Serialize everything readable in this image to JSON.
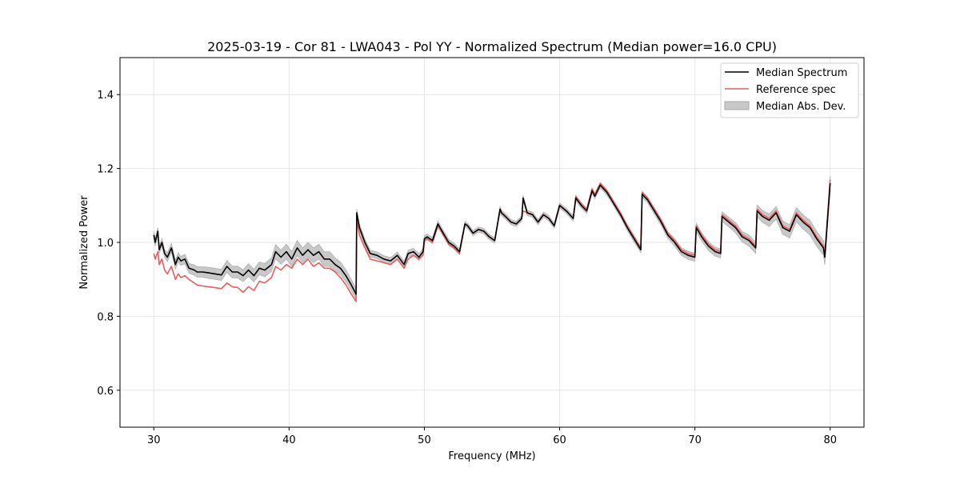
{
  "chart_data": {
    "type": "line",
    "title": "2025-03-19 - Cor 81 - LWA043 - Pol YY - Normalized Spectrum (Median power=16.0 CPU)",
    "xlabel": "Frequency (MHz)",
    "ylabel": "Normalized Power",
    "xlim": [
      27.5,
      82.5
    ],
    "ylim": [
      0.5,
      1.5
    ],
    "xticks": [
      30,
      40,
      50,
      60,
      70,
      80
    ],
    "yticks": [
      0.6,
      0.8,
      1.0,
      1.2,
      1.4
    ],
    "xtick_labels": [
      "30",
      "40",
      "50",
      "60",
      "70",
      "80"
    ],
    "ytick_labels": [
      "0.6",
      "0.8",
      "1.0",
      "1.2",
      "1.4"
    ],
    "grid": true,
    "legend_position": "top-right",
    "legend": [
      "Median Spectrum",
      "Reference spec",
      "Median Abs. Dev."
    ],
    "colors": {
      "median": "#000000",
      "reference": "#f05a5a",
      "mad_band": "#c8c8c8",
      "grid": "#e6e6e6"
    },
    "series": [
      {
        "name": "Median Spectrum",
        "x": [
          30.0,
          30.1,
          30.3,
          30.4,
          30.6,
          30.8,
          31.0,
          31.3,
          31.6,
          31.8,
          32.0,
          32.3,
          32.6,
          33.0,
          33.2,
          33.6,
          34.0,
          34.5,
          35.0,
          35.4,
          35.8,
          36.2,
          36.6,
          37.0,
          37.4,
          37.8,
          38.2,
          38.7,
          39.0,
          39.4,
          39.8,
          40.2,
          40.6,
          41.0,
          41.4,
          41.8,
          42.2,
          42.6,
          43.0,
          43.4,
          43.8,
          44.2,
          44.6,
          44.95,
          45.0,
          45.2,
          45.6,
          46.0,
          46.5,
          47.0,
          47.5,
          48.0,
          48.5,
          48.8,
          49.2,
          49.6,
          49.9,
          50.0,
          50.2,
          50.6,
          51.0,
          51.4,
          51.8,
          52.2,
          52.6,
          53.0,
          53.2,
          53.6,
          54.0,
          54.4,
          54.8,
          55.2,
          55.6,
          55.7,
          56.0,
          56.4,
          56.8,
          57.2,
          57.3,
          57.6,
          58.0,
          58.4,
          58.8,
          59.2,
          59.6,
          60.0,
          60.5,
          61.0,
          61.2,
          61.6,
          62.0,
          62.4,
          62.6,
          63.0,
          63.5,
          64.0,
          64.5,
          65.0,
          65.5,
          66.0,
          66.1,
          66.5,
          67.0,
          67.5,
          68.0,
          68.5,
          69.0,
          69.5,
          70.0,
          70.1,
          70.5,
          71.0,
          71.5,
          71.9,
          72.0,
          72.5,
          73.0,
          73.5,
          74.0,
          74.5,
          74.6,
          75.0,
          75.5,
          76.0,
          76.5,
          77.0,
          77.5,
          78.0,
          78.5,
          79.0,
          79.5,
          79.6,
          80.0
        ],
        "values": [
          1.02,
          1.0,
          1.03,
          0.98,
          1.0,
          0.97,
          0.96,
          0.985,
          0.94,
          0.96,
          0.95,
          0.955,
          0.93,
          0.925,
          0.92,
          0.92,
          0.918,
          0.915,
          0.912,
          0.935,
          0.92,
          0.92,
          0.91,
          0.925,
          0.91,
          0.93,
          0.925,
          0.94,
          0.975,
          0.96,
          0.975,
          0.955,
          0.985,
          0.965,
          0.98,
          0.965,
          0.975,
          0.955,
          0.955,
          0.94,
          0.93,
          0.91,
          0.885,
          0.86,
          1.08,
          1.04,
          1.0,
          0.97,
          0.965,
          0.955,
          0.95,
          0.965,
          0.94,
          0.97,
          0.975,
          0.96,
          0.975,
          1.01,
          1.015,
          1.005,
          1.05,
          1.025,
          1.0,
          0.99,
          0.975,
          1.05,
          1.045,
          1.025,
          1.035,
          1.03,
          1.015,
          1.005,
          1.09,
          1.08,
          1.07,
          1.055,
          1.05,
          1.065,
          1.12,
          1.08,
          1.075,
          1.055,
          1.075,
          1.065,
          1.045,
          1.1,
          1.085,
          1.065,
          1.12,
          1.1,
          1.085,
          1.14,
          1.125,
          1.155,
          1.135,
          1.105,
          1.075,
          1.04,
          1.01,
          0.98,
          1.13,
          1.115,
          1.085,
          1.055,
          1.02,
          1.0,
          0.975,
          0.965,
          0.96,
          1.04,
          1.015,
          0.99,
          0.975,
          0.97,
          1.07,
          1.055,
          1.04,
          1.015,
          1.005,
          0.985,
          1.085,
          1.07,
          1.06,
          1.08,
          1.04,
          1.03,
          1.075,
          1.055,
          1.04,
          1.01,
          0.985,
          0.96,
          1.16
        ],
        "mad": [
          0.01,
          0.01,
          0.01,
          0.01,
          0.01,
          0.01,
          0.012,
          0.012,
          0.012,
          0.012,
          0.012,
          0.013,
          0.013,
          0.014,
          0.014,
          0.014,
          0.015,
          0.015,
          0.015,
          0.016,
          0.016,
          0.016,
          0.016,
          0.017,
          0.017,
          0.017,
          0.018,
          0.018,
          0.019,
          0.019,
          0.02,
          0.02,
          0.02,
          0.02,
          0.02,
          0.02,
          0.02,
          0.02,
          0.02,
          0.018,
          0.017,
          0.016,
          0.015,
          0.015,
          0.01,
          0.009,
          0.009,
          0.009,
          0.009,
          0.009,
          0.009,
          0.009,
          0.009,
          0.009,
          0.009,
          0.009,
          0.009,
          0.008,
          0.008,
          0.008,
          0.008,
          0.008,
          0.008,
          0.008,
          0.008,
          0.007,
          0.007,
          0.007,
          0.007,
          0.007,
          0.007,
          0.007,
          0.007,
          0.007,
          0.007,
          0.007,
          0.007,
          0.007,
          0.007,
          0.007,
          0.007,
          0.007,
          0.007,
          0.007,
          0.007,
          0.007,
          0.007,
          0.007,
          0.007,
          0.007,
          0.007,
          0.007,
          0.007,
          0.007,
          0.007,
          0.007,
          0.007,
          0.008,
          0.008,
          0.008,
          0.008,
          0.008,
          0.008,
          0.009,
          0.009,
          0.01,
          0.01,
          0.011,
          0.011,
          0.011,
          0.011,
          0.012,
          0.012,
          0.012,
          0.013,
          0.013,
          0.014,
          0.014,
          0.015,
          0.015,
          0.016,
          0.016,
          0.017,
          0.017,
          0.018,
          0.018,
          0.019,
          0.019,
          0.02,
          0.02,
          0.02,
          0.02,
          0.02
        ]
      },
      {
        "name": "Reference spec",
        "x": [
          30.0,
          30.1,
          30.3,
          30.4,
          30.6,
          30.8,
          31.0,
          31.3,
          31.6,
          31.8,
          32.0,
          32.3,
          32.6,
          33.0,
          33.2,
          33.6,
          34.0,
          34.5,
          35.0,
          35.4,
          35.8,
          36.2,
          36.6,
          37.0,
          37.4,
          37.8,
          38.2,
          38.7,
          39.0,
          39.4,
          39.8,
          40.2,
          40.6,
          41.0,
          41.4,
          41.8,
          42.2,
          42.6,
          43.0,
          43.4,
          43.8,
          44.2,
          44.6,
          44.95,
          45.0,
          45.2,
          45.6,
          46.0,
          46.5,
          47.0,
          47.5,
          48.0,
          48.5,
          48.8,
          49.2,
          49.6,
          49.9,
          50.0,
          50.2,
          50.6,
          51.0,
          51.4,
          51.8,
          52.2,
          52.6,
          53.0,
          53.2,
          53.6,
          54.0,
          54.4,
          54.8,
          55.2,
          55.6,
          55.7,
          56.0,
          56.4,
          56.8,
          57.2,
          57.3,
          57.6,
          58.0,
          58.4,
          58.8,
          59.2,
          59.6,
          60.0,
          60.5,
          61.0,
          61.2,
          61.6,
          62.0,
          62.4,
          62.6,
          63.0,
          63.5,
          64.0,
          64.5,
          65.0,
          65.5,
          66.0,
          66.1,
          66.5,
          67.0,
          67.5,
          68.0,
          68.5,
          69.0,
          69.5,
          70.0,
          70.1,
          70.5,
          71.0,
          71.5,
          71.9,
          72.0,
          72.5,
          73.0,
          73.5,
          74.0,
          74.5,
          74.6,
          75.0,
          75.5,
          76.0,
          76.5,
          77.0,
          77.5,
          78.0,
          78.5,
          79.0,
          79.5,
          79.6,
          80.0
        ],
        "values": [
          0.97,
          0.955,
          0.975,
          0.94,
          0.955,
          0.925,
          0.915,
          0.935,
          0.9,
          0.915,
          0.905,
          0.91,
          0.9,
          0.89,
          0.885,
          0.882,
          0.88,
          0.878,
          0.875,
          0.89,
          0.88,
          0.878,
          0.865,
          0.88,
          0.87,
          0.895,
          0.89,
          0.905,
          0.935,
          0.925,
          0.94,
          0.93,
          0.955,
          0.94,
          0.955,
          0.935,
          0.945,
          0.93,
          0.93,
          0.92,
          0.905,
          0.885,
          0.86,
          0.84,
          1.06,
          1.02,
          0.985,
          0.955,
          0.95,
          0.945,
          0.94,
          0.955,
          0.93,
          0.955,
          0.965,
          0.955,
          0.965,
          1.005,
          1.01,
          1.0,
          1.045,
          1.02,
          0.995,
          0.985,
          0.97,
          1.05,
          1.045,
          1.025,
          1.035,
          1.03,
          1.015,
          1.005,
          1.09,
          1.08,
          1.07,
          1.055,
          1.05,
          1.065,
          1.085,
          1.08,
          1.075,
          1.055,
          1.075,
          1.065,
          1.045,
          1.1,
          1.085,
          1.065,
          1.125,
          1.105,
          1.09,
          1.145,
          1.13,
          1.16,
          1.14,
          1.11,
          1.08,
          1.045,
          1.015,
          0.985,
          1.135,
          1.12,
          1.09,
          1.06,
          1.025,
          1.005,
          0.98,
          0.97,
          0.965,
          1.045,
          1.02,
          0.995,
          0.98,
          0.975,
          1.075,
          1.06,
          1.045,
          1.02,
          1.01,
          0.99,
          1.09,
          1.075,
          1.065,
          1.085,
          1.045,
          1.035,
          1.08,
          1.06,
          1.045,
          1.015,
          0.99,
          0.965,
          1.17
        ]
      }
    ]
  }
}
